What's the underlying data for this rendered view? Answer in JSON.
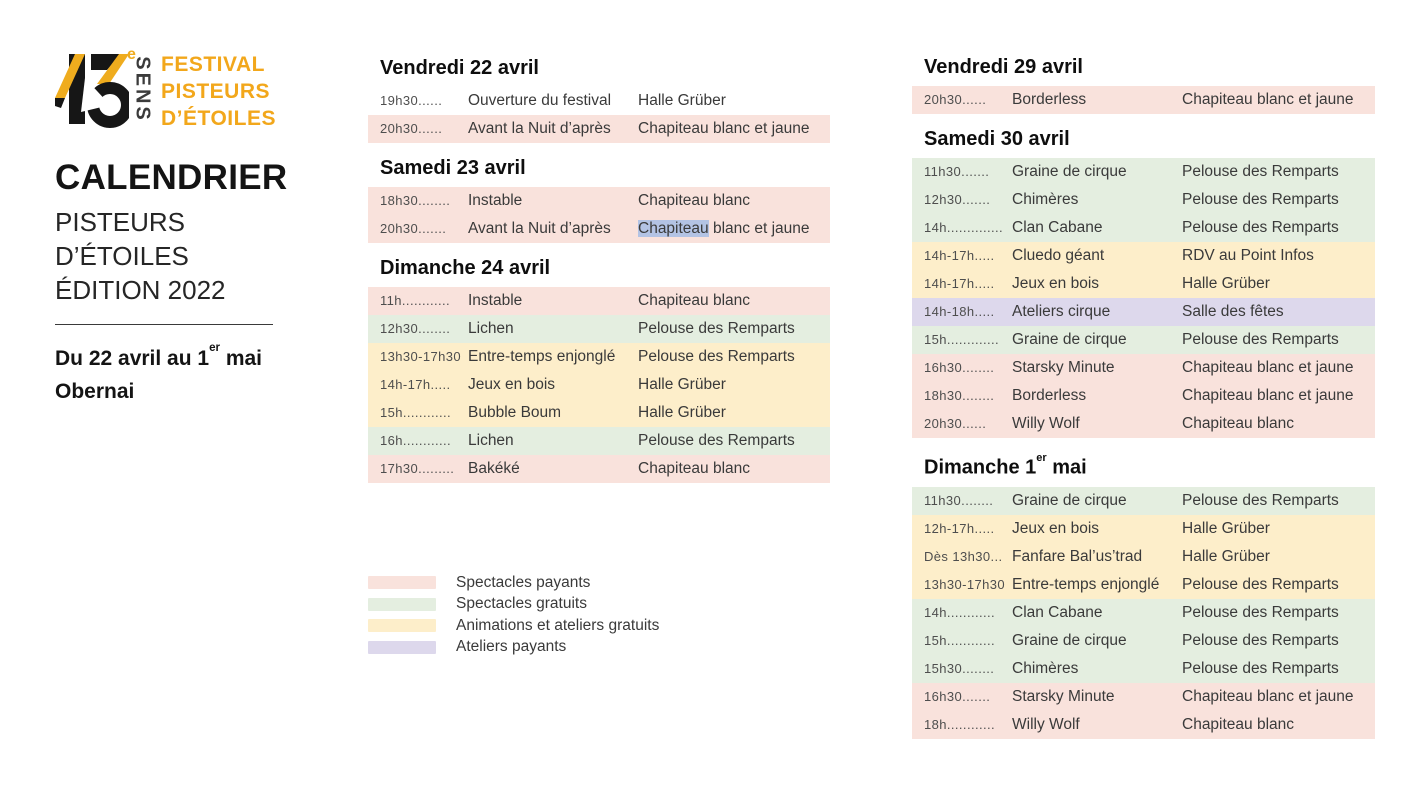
{
  "brand": {
    "logo_number": "13",
    "logo_sup": "e",
    "logo_vertical": "SENS",
    "logo_lines": [
      "FESTIVAL",
      "PISTEURS",
      "D’ÉTOILES"
    ],
    "accent_orange": "#F2A71B",
    "accent_yellow": "#EFAC1E",
    "accent_black": "#161616"
  },
  "sidepanel": {
    "title": "CALENDRIER",
    "subtitle1": "PISTEURS D’ÉTOILES",
    "subtitle2": "ÉDITION 2022",
    "dates_pre": "Du 22 avril au 1",
    "dates_sup": "er",
    "dates_post": " mai",
    "city": "Obernai"
  },
  "row_colors": {
    "paid": "#f9e2dc",
    "free": "#e4eee0",
    "anim": "#fdeeca",
    "workshop": "#ddd8ec",
    "none": "transparent"
  },
  "selection_color": "#b3c3e4",
  "legend": [
    {
      "label": "Spectacles payants",
      "color": "#f9e2dc"
    },
    {
      "label": "Spectacles gratuits",
      "color": "#e4eee0"
    },
    {
      "label": "Animations et ateliers gratuits",
      "color": "#fdeeca"
    },
    {
      "label": "Ateliers payants",
      "color": "#ddd8ec"
    }
  ],
  "columns": [
    {
      "days": [
        {
          "title_pre": "Vendredi 22 avril",
          "title_sup": "",
          "title_post": "",
          "rows": [
            {
              "time": "19h30......",
              "event": "Ouverture du festival",
              "location": "Halle Grüber",
              "type": "none"
            },
            {
              "time": "20h30......",
              "event": "Avant la Nuit d’après",
              "location": "Chapiteau blanc et jaune",
              "type": "paid"
            }
          ]
        },
        {
          "title_pre": "Samedi 23 avril",
          "title_sup": "",
          "title_post": "",
          "rows": [
            {
              "time": "18h30........",
              "event": "Instable",
              "location": "Chapiteau blanc",
              "type": "paid"
            },
            {
              "time": "20h30.......",
              "event": "Avant la Nuit d’après",
              "location": "Chapiteau blanc et jaune",
              "type": "paid",
              "highlight": "Chapiteau"
            }
          ]
        },
        {
          "title_pre": "Dimanche 24 avril",
          "title_sup": "",
          "title_post": "",
          "rows": [
            {
              "time": "11h............",
              "event": "Instable",
              "location": "Chapiteau blanc",
              "type": "paid"
            },
            {
              "time": "12h30........",
              "event": "Lichen",
              "location": "Pelouse des Remparts",
              "type": "free"
            },
            {
              "time": "13h30-17h30",
              "event": "Entre-temps enjonglé",
              "location": "Pelouse des Remparts",
              "type": "anim"
            },
            {
              "time": "14h-17h.....",
              "event": "Jeux en bois",
              "location": "Halle Grüber",
              "type": "anim"
            },
            {
              "time": "15h............",
              "event": "Bubble Boum",
              "location": "Halle Grüber",
              "type": "anim"
            },
            {
              "time": "16h............",
              "event": "Lichen",
              "location": "Pelouse des Remparts",
              "type": "free"
            },
            {
              "time": "17h30.........",
              "event": "Bakéké",
              "location": "Chapiteau blanc",
              "type": "paid"
            }
          ]
        }
      ]
    },
    {
      "days": [
        {
          "title_pre": "Vendredi 29 avril",
          "title_sup": "",
          "title_post": "",
          "rows": [
            {
              "time": "20h30......",
              "event": "Borderless",
              "location": "Chapiteau blanc et jaune",
              "type": "paid"
            }
          ]
        },
        {
          "title_pre": "Samedi 30 avril",
          "title_sup": "",
          "title_post": "",
          "rows": [
            {
              "time": "11h30.......",
              "event": "Graine de cirque",
              "location": "Pelouse des Remparts",
              "type": "free"
            },
            {
              "time": "12h30.......",
              "event": "Chimères",
              "location": "Pelouse des Remparts",
              "type": "free"
            },
            {
              "time": "14h..............",
              "event": "Clan Cabane",
              "location": "Pelouse des Remparts",
              "type": "free"
            },
            {
              "time": "14h-17h.....",
              "event": "Cluedo géant",
              "location": "RDV au Point Infos",
              "type": "anim"
            },
            {
              "time": "14h-17h.....",
              "event": "Jeux en bois",
              "location": "Halle Grüber",
              "type": "anim"
            },
            {
              "time": "14h-18h.....",
              "event": "Ateliers cirque",
              "location": "Salle des fêtes",
              "type": "workshop"
            },
            {
              "time": "15h.............",
              "event": "Graine de cirque",
              "location": "Pelouse des Remparts",
              "type": "free"
            },
            {
              "time": "16h30........",
              "event": "Starsky Minute",
              "location": "Chapiteau blanc et jaune",
              "type": "paid"
            },
            {
              "time": "18h30........",
              "event": "Borderless",
              "location": "Chapiteau blanc et jaune",
              "type": "paid"
            },
            {
              "time": "20h30......",
              "event": "Willy Wolf",
              "location": "Chapiteau blanc",
              "type": "paid"
            }
          ]
        },
        {
          "title_pre": "Dimanche 1",
          "title_sup": "er",
          "title_post": " mai",
          "rows": [
            {
              "time": "11h30........",
              "event": "Graine de cirque",
              "location": "Pelouse des Remparts",
              "type": "free"
            },
            {
              "time": "12h-17h.....",
              "event": "Jeux en bois",
              "location": "Halle Grüber",
              "type": "anim"
            },
            {
              "time": "Dès 13h30...",
              "event": "Fanfare Bal’us’trad",
              "location": "Halle Grüber",
              "type": "anim"
            },
            {
              "time": "13h30-17h30",
              "event": "Entre-temps enjonglé",
              "location": "Pelouse des Remparts",
              "type": "anim"
            },
            {
              "time": "14h............",
              "event": "Clan Cabane",
              "location": "Pelouse des Remparts",
              "type": "free"
            },
            {
              "time": "15h............",
              "event": "Graine de cirque",
              "location": "Pelouse des Remparts",
              "type": "free"
            },
            {
              "time": "15h30........",
              "event": "Chimères",
              "location": "Pelouse des Remparts",
              "type": "free"
            },
            {
              "time": "16h30.......",
              "event": "Starsky Minute",
              "location": "Chapiteau blanc et jaune",
              "type": "paid"
            },
            {
              "time": "18h............",
              "event": "Willy Wolf",
              "location": "Chapiteau blanc",
              "type": "paid"
            }
          ]
        }
      ]
    }
  ]
}
